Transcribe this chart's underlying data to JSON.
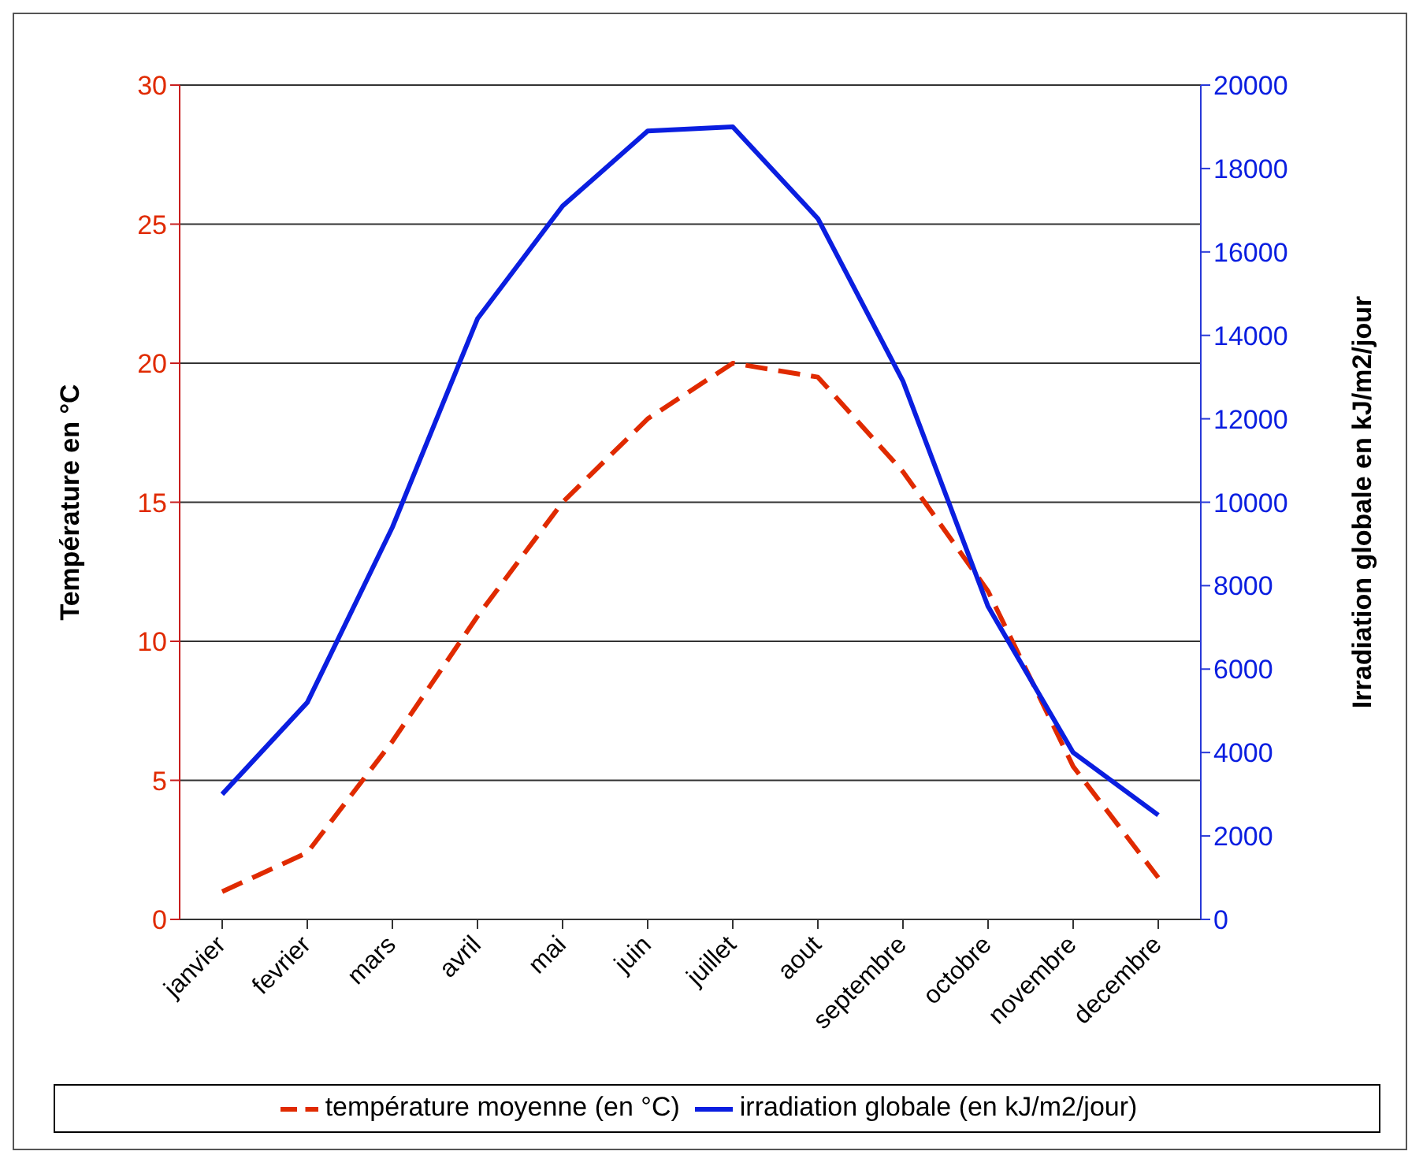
{
  "chart_data": {
    "type": "line",
    "categories": [
      "janvier",
      "fevrier",
      "mars",
      "avril",
      "mai",
      "juin",
      "juillet",
      "aout",
      "septembre",
      "octobre",
      "novembre",
      "decembre"
    ],
    "series": [
      {
        "name": "température moyenne (en °C)",
        "color": "#e02a00",
        "line_style": "dashed",
        "values": [
          1.0,
          2.4,
          6.4,
          10.9,
          15.0,
          18.0,
          20.0,
          19.5,
          16.1,
          11.8,
          5.5,
          1.5
        ]
      },
      {
        "name": "irradiation globale (en kJ/m2/jour)",
        "color": "#0a1ee0",
        "line_style": "solid",
        "axis": "y2",
        "values": [
          3000,
          5200,
          9400,
          14400,
          17100,
          18900,
          19000,
          16800,
          12900,
          7500,
          4000,
          2500
        ]
      }
    ],
    "ylabel": "Température en °C",
    "y2label": "Irradiation globale en kJ/m2/jour",
    "ylim": [
      0,
      30
    ],
    "yticks": [
      0,
      5,
      10,
      15,
      20,
      25,
      30
    ],
    "y2lim": [
      0,
      20000
    ],
    "y2ticks": [
      0,
      2000,
      4000,
      6000,
      8000,
      10000,
      12000,
      14000,
      16000,
      18000,
      20000
    ],
    "grid": "y",
    "legend": "bottom",
    "marker": "none"
  }
}
